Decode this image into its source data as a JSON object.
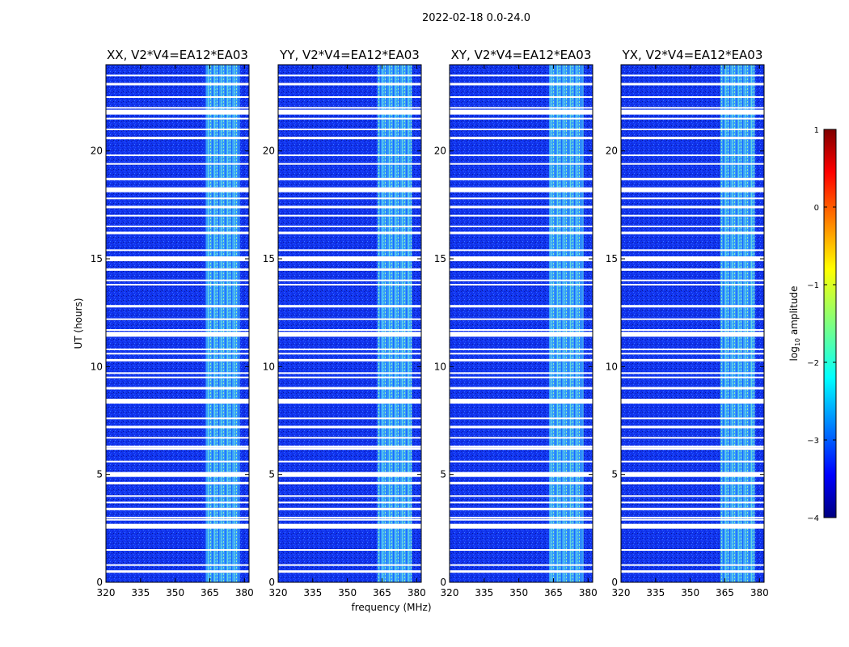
{
  "figure_title": "2022-02-18 0.0-24.0",
  "chart_data": {
    "type": "heatmap",
    "suptitle": "2022-02-18 0.0-24.0",
    "xlabel": "frequency (MHz)",
    "ylabel": "UT (hours)",
    "xlim": [
      320,
      382
    ],
    "ylim": [
      0,
      24
    ],
    "xticks": [
      320,
      335,
      350,
      365,
      380
    ],
    "yticks": [
      0,
      5,
      10,
      15,
      20
    ],
    "panels": [
      {
        "title": "XX, V2*V4=EA12*EA03",
        "pol": "XX"
      },
      {
        "title": "YY, V2*V4=EA12*EA03",
        "pol": "YY"
      },
      {
        "title": "XY, V2*V4=EA12*EA03",
        "pol": "XY"
      },
      {
        "title": "YX, V2*V4=EA12*EA03",
        "pol": "YX"
      }
    ],
    "colorbar": {
      "label": "log10 amplitude",
      "label_main": "log",
      "label_sub": "10",
      "label_rest": " amplitude",
      "min": -4,
      "max": 1,
      "ticks": [
        1,
        0,
        -1,
        -2,
        -3,
        -4
      ],
      "colormap": "jet"
    },
    "rfi_band_mhz": [
      363,
      378
    ],
    "noise_level_log10": -3.2,
    "rfi_level_log10": -2.0,
    "flagged_ut_hours": [
      0.5,
      0.8,
      1.5,
      2.6,
      2.9,
      3.0,
      3.4,
      3.7,
      4.0,
      4.6,
      5.0,
      5.6,
      6.2,
      6.3,
      6.7,
      7.2,
      7.6,
      8.4,
      9.0,
      9.5,
      9.7,
      10.3,
      10.6,
      10.8,
      11.5,
      11.7,
      12.2,
      12.8,
      13.8,
      14.0,
      14.5,
      15.0,
      15.4,
      16.2,
      16.5,
      17.0,
      17.4,
      17.8,
      18.2,
      18.7,
      19.4,
      19.8,
      20.6,
      21.0,
      21.5,
      21.8,
      22.0,
      22.5,
      23.1,
      23.5
    ]
  }
}
